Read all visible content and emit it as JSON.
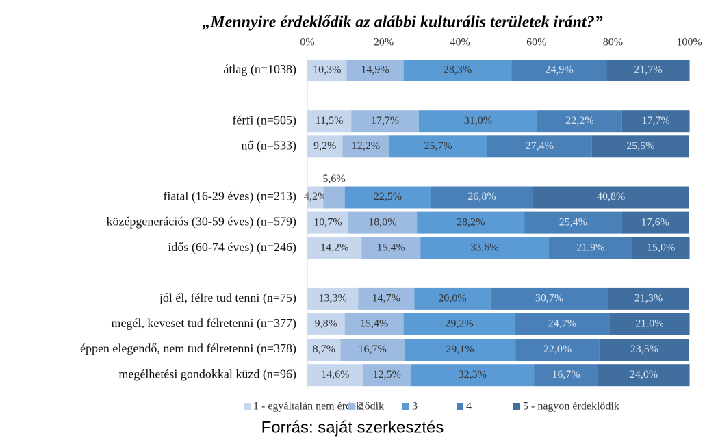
{
  "chart_data": {
    "type": "stacked_barh",
    "title": "„Mennyire érdeklődik az alábbi kulturális területek iránt?”",
    "source": "Forrás: saját szerkesztés",
    "categories": [
      "átlag (n=1038)",
      null,
      "férfi (n=505)",
      "nő (n=533)",
      null,
      "fiatal (16-29 éves) (n=213)",
      "középgenerációs (30-59 éves) (n=579)",
      "idős (60-74 éves) (n=246)",
      null,
      "jól él, félre tud tenni (n=75)",
      "megél, keveset tud félretenni (n=377)",
      "éppen elegendő, nem tud félretenni (n=378)",
      "megélhetési gondokkal küzd (n=96)"
    ],
    "series": [
      {
        "name": "1 - egyáltalán nem érdeklődik",
        "color": "#c6d6ec",
        "label_color": "#333333",
        "values": [
          10.3,
          null,
          11.5,
          9.2,
          null,
          4.2,
          10.7,
          14.2,
          null,
          13.3,
          9.8,
          8.7,
          14.6
        ],
        "value_labels": [
          "10,3%",
          null,
          "11,5%",
          "9,2%",
          null,
          "4,2%",
          "10,7%",
          "14,2%",
          null,
          "13,3%",
          "9,8%",
          "8,7%",
          "14,6%"
        ]
      },
      {
        "name": "2",
        "color": "#9dbbe0",
        "label_color": "#333333",
        "values": [
          14.9,
          null,
          17.7,
          12.2,
          null,
          5.6,
          18.0,
          15.4,
          null,
          14.7,
          15.4,
          16.7,
          12.5
        ],
        "value_labels": [
          "14,9%",
          null,
          "17,7%",
          "12,2%",
          null,
          "5,6%",
          "18,0%",
          "15,4%",
          null,
          "14,7%",
          "15,4%",
          "16,7%",
          "12,5%"
        ]
      },
      {
        "name": "3",
        "color": "#5b9bd5",
        "label_color": "#333333",
        "values": [
          28.3,
          null,
          31.0,
          25.7,
          null,
          22.5,
          28.2,
          33.6,
          null,
          20.0,
          29.2,
          29.1,
          32.3
        ],
        "value_labels": [
          "28,3%",
          null,
          "31,0%",
          "25,7%",
          null,
          "22,5%",
          "28,2%",
          "33,6%",
          null,
          "20,0%",
          "29,2%",
          "29,1%",
          "32,3%"
        ]
      },
      {
        "name": "4",
        "color": "#4a80b8",
        "label_color": "#dce6f2",
        "values": [
          24.9,
          null,
          22.2,
          27.4,
          null,
          26.8,
          25.4,
          21.9,
          null,
          30.7,
          24.7,
          22.0,
          16.7
        ],
        "value_labels": [
          "24,9%",
          null,
          "22,2%",
          "27,4%",
          null,
          "26,8%",
          "25,4%",
          "21,9%",
          null,
          "30,7%",
          "24,7%",
          "22,0%",
          "16,7%"
        ]
      },
      {
        "name": "5 - nagyon érdeklődik",
        "color": "#3f6e9f",
        "label_color": "#dce6f2",
        "values": [
          21.7,
          null,
          17.7,
          25.5,
          null,
          40.8,
          17.6,
          15.0,
          null,
          21.3,
          21.0,
          23.5,
          24.0
        ],
        "value_labels": [
          "21,7%",
          null,
          "17,7%",
          "25,5%",
          null,
          "40,8%",
          "17,6%",
          "15,0%",
          null,
          "21,3%",
          "21,0%",
          "23,5%",
          "24,0%"
        ]
      }
    ],
    "xlim": [
      0,
      100
    ],
    "xticks": [
      {
        "value": 0,
        "label": "0%"
      },
      {
        "value": 20,
        "label": "20%"
      },
      {
        "value": 40,
        "label": "40%"
      },
      {
        "value": 60,
        "label": "60%"
      },
      {
        "value": 80,
        "label": "80%"
      },
      {
        "value": 100,
        "label": "100%"
      }
    ],
    "legend": "bottom"
  }
}
